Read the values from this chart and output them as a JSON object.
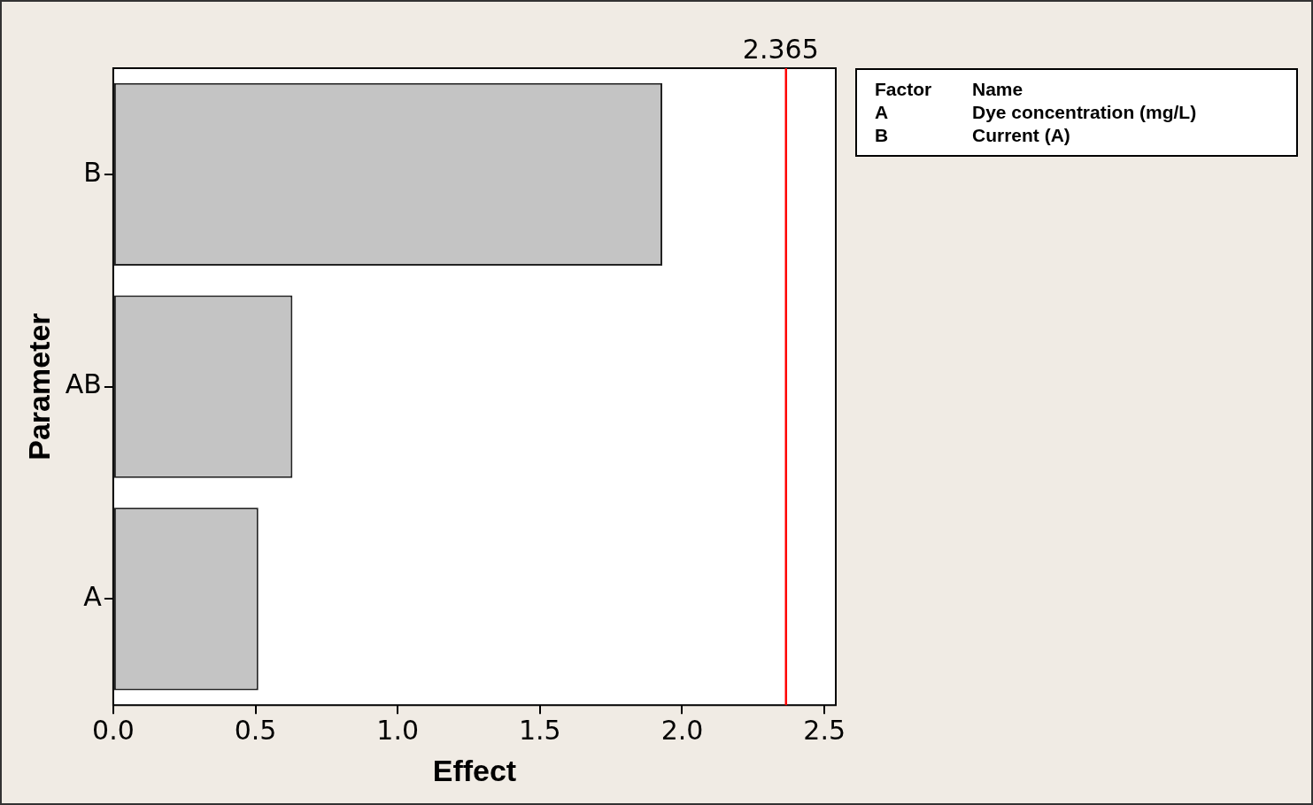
{
  "chart_data": {
    "type": "bar",
    "orientation": "horizontal",
    "xlabel": "Effect",
    "ylabel": "Parameter",
    "categories": [
      "B",
      "AB",
      "A"
    ],
    "values": [
      1.93,
      0.63,
      0.51
    ],
    "color": "#c4c4c4",
    "xlim": [
      0,
      2.54
    ],
    "xticks": [
      {
        "value": 0,
        "label": "0.0"
      },
      {
        "value": 0.5,
        "label": "0.5"
      },
      {
        "value": 1,
        "label": "1.0"
      },
      {
        "value": 1.5,
        "label": "1.5"
      },
      {
        "value": 2,
        "label": "2.0"
      },
      {
        "value": 2.5,
        "label": "2.5"
      }
    ],
    "ref_lines": [
      {
        "axis": "x",
        "value": 2.365,
        "label": "2.365",
        "color": "#ff0000"
      }
    ],
    "annotations": [
      "Factor",
      "Name",
      "A",
      "Dye concentration (mg/L)",
      "B",
      "Current (A)"
    ],
    "legend": false
  }
}
